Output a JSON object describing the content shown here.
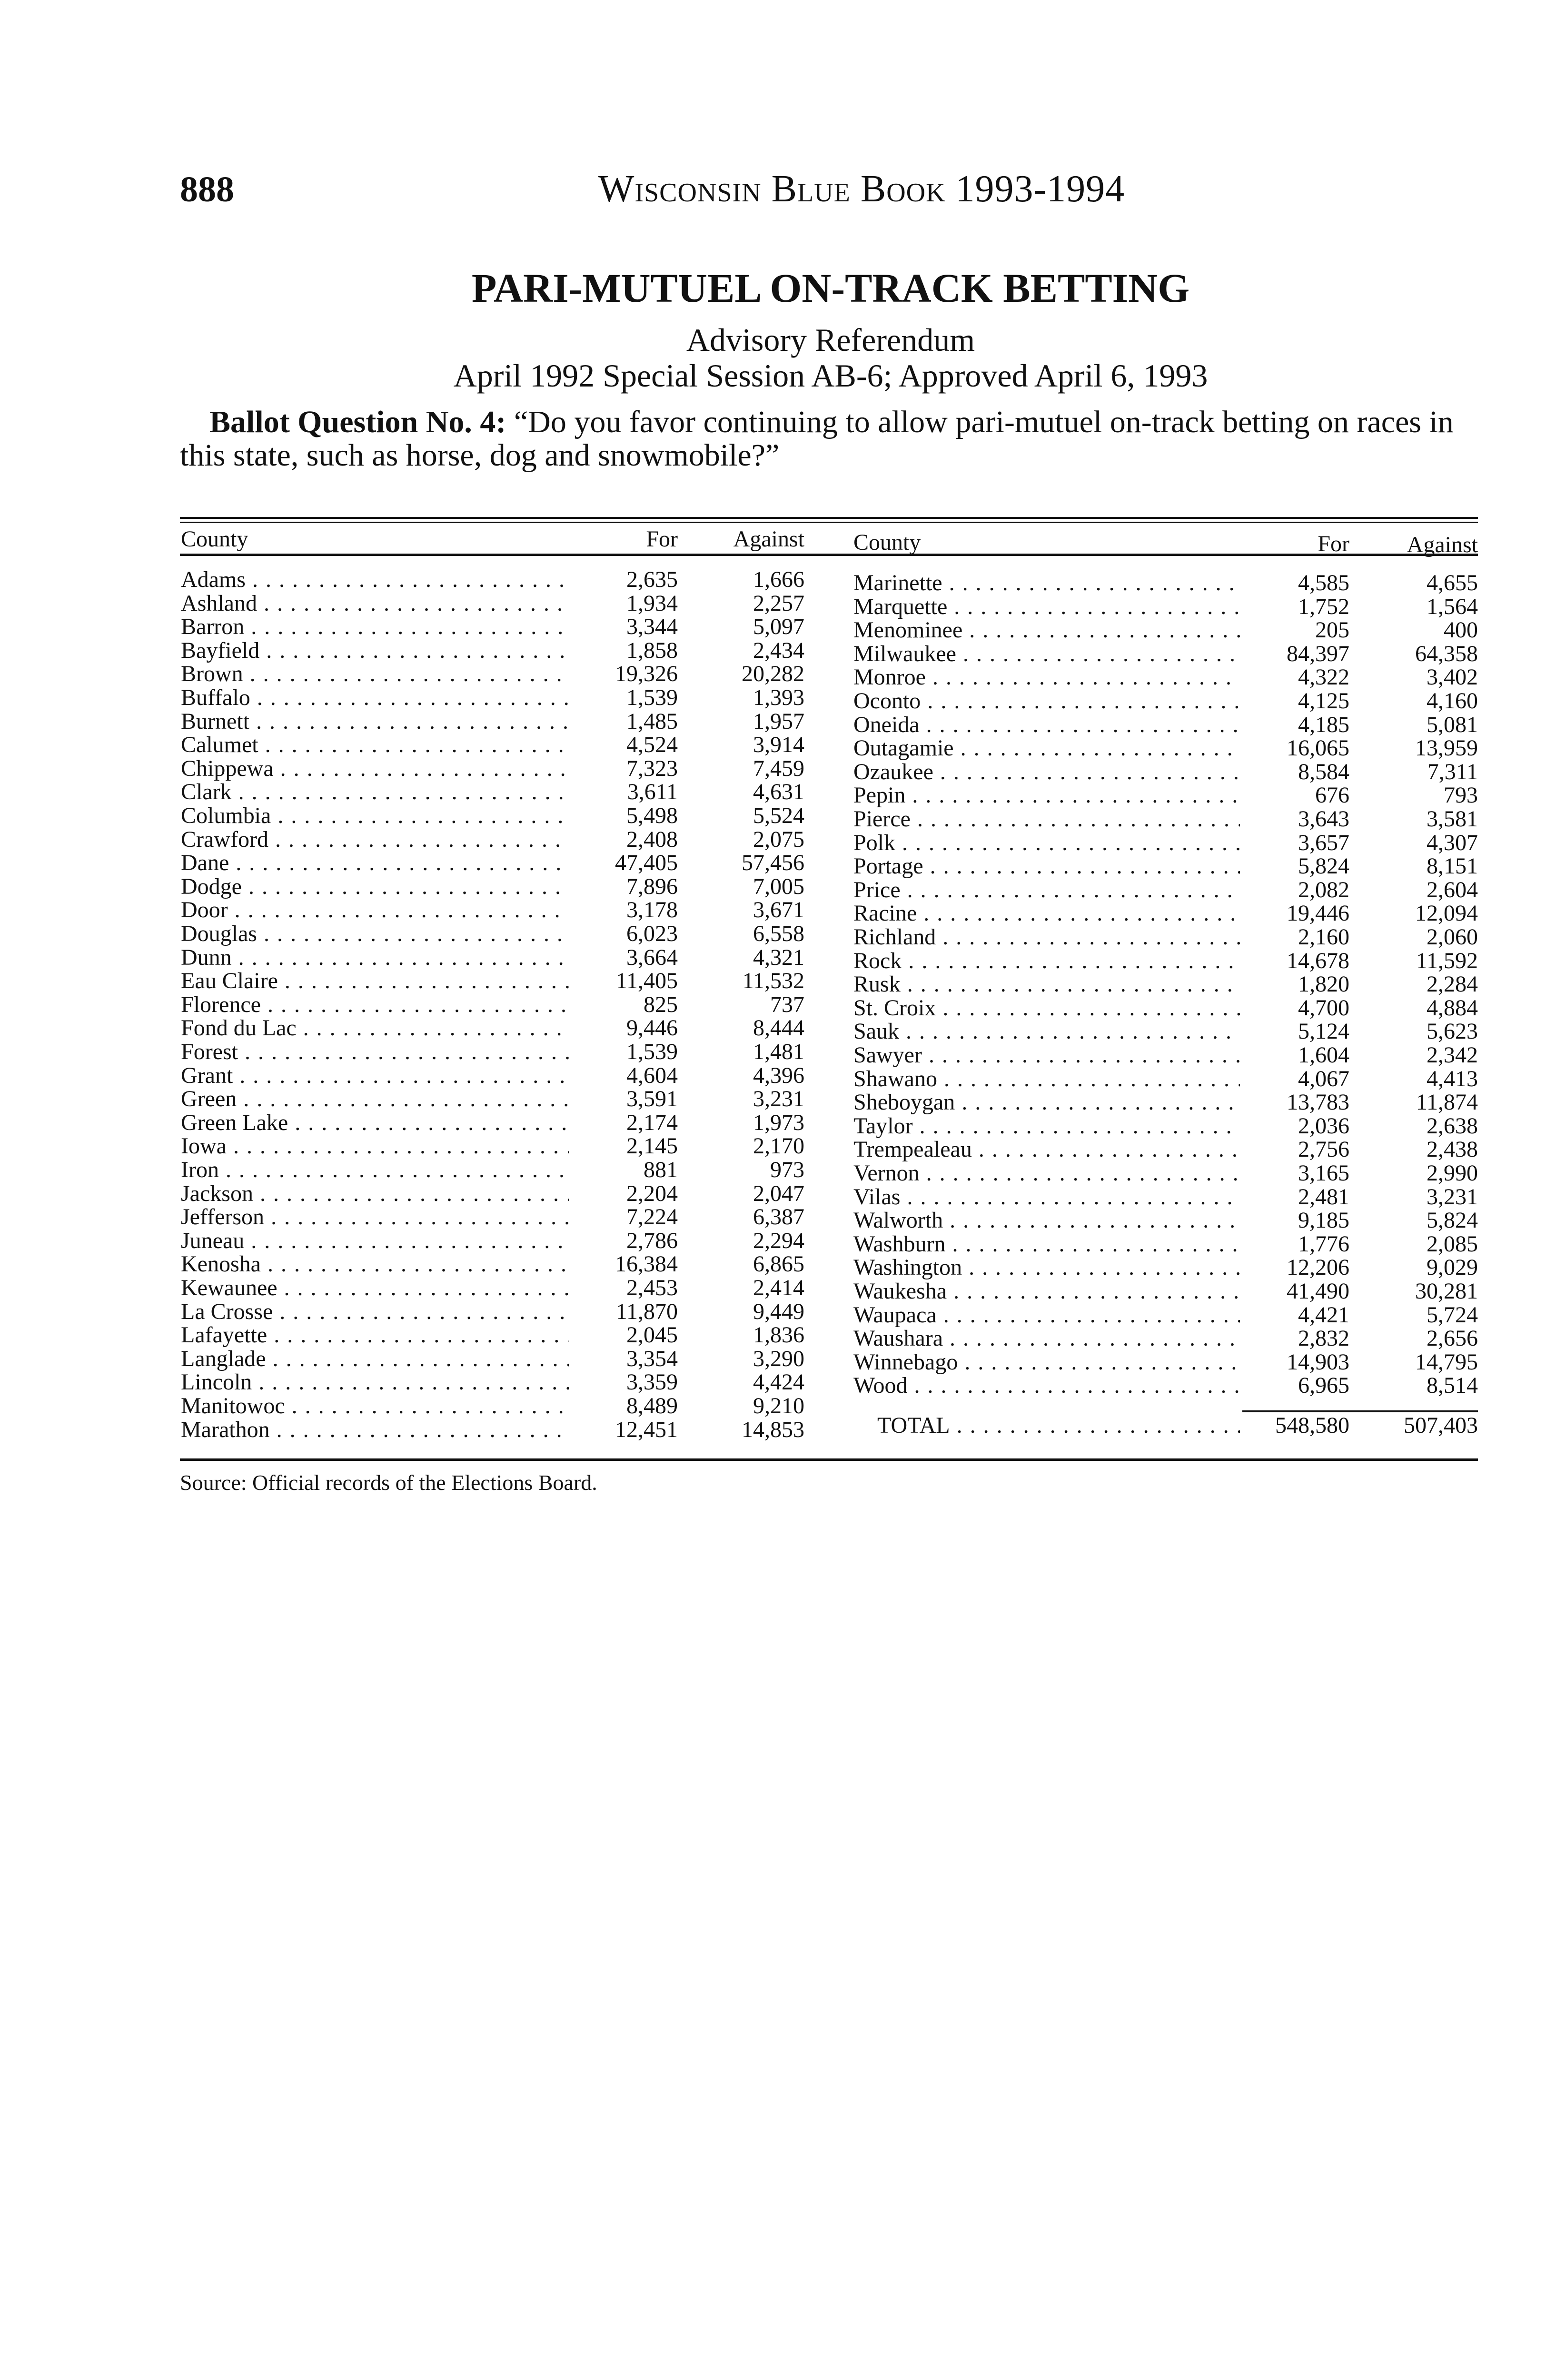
{
  "header": {
    "page_number": "888",
    "running_head": "Wisconsin Blue Book 1993-1994"
  },
  "title": "PARI-MUTUEL ON-TRACK BETTING",
  "subtitle": "Advisory Referendum",
  "dateline": "April 1992 Special Session AB-6; Approved April 6, 1993",
  "question": {
    "label": "Ballot Question No. 4:",
    "text": "“Do you favor continuing to allow pari-mutuel on-track betting on races in this state, such as horse, dog and snowmobile?”"
  },
  "table": {
    "columns": {
      "county": "County",
      "for": "For",
      "against": "Against"
    },
    "left_rows": [
      [
        "Adams",
        "2,635",
        "1,666"
      ],
      [
        "Ashland",
        "1,934",
        "2,257"
      ],
      [
        "Barron",
        "3,344",
        "5,097"
      ],
      [
        "Bayfield",
        "1,858",
        "2,434"
      ],
      [
        "Brown",
        "19,326",
        "20,282"
      ],
      [
        "Buffalo",
        "1,539",
        "1,393"
      ],
      [
        "Burnett",
        "1,485",
        "1,957"
      ],
      [
        "Calumet",
        "4,524",
        "3,914"
      ],
      [
        "Chippewa",
        "7,323",
        "7,459"
      ],
      [
        "Clark",
        "3,611",
        "4,631"
      ],
      [
        "Columbia",
        "5,498",
        "5,524"
      ],
      [
        "Crawford",
        "2,408",
        "2,075"
      ],
      [
        "Dane",
        "47,405",
        "57,456"
      ],
      [
        "Dodge",
        "7,896",
        "7,005"
      ],
      [
        "Door",
        "3,178",
        "3,671"
      ],
      [
        "Douglas",
        "6,023",
        "6,558"
      ],
      [
        "Dunn",
        "3,664",
        "4,321"
      ],
      [
        "Eau Claire",
        "11,405",
        "11,532"
      ],
      [
        "Florence",
        "825",
        "737"
      ],
      [
        "Fond du Lac",
        "9,446",
        "8,444"
      ],
      [
        "Forest",
        "1,539",
        "1,481"
      ],
      [
        "Grant",
        "4,604",
        "4,396"
      ],
      [
        "Green",
        "3,591",
        "3,231"
      ],
      [
        "Green Lake",
        "2,174",
        "1,973"
      ],
      [
        "Iowa",
        "2,145",
        "2,170"
      ],
      [
        "Iron",
        "881",
        "973"
      ],
      [
        "Jackson",
        "2,204",
        "2,047"
      ],
      [
        "Jefferson",
        "7,224",
        "6,387"
      ],
      [
        "Juneau",
        "2,786",
        "2,294"
      ],
      [
        "Kenosha",
        "16,384",
        "6,865"
      ],
      [
        "Kewaunee",
        "2,453",
        "2,414"
      ],
      [
        "La Crosse",
        "11,870",
        "9,449"
      ],
      [
        "Lafayette",
        "2,045",
        "1,836"
      ],
      [
        "Langlade",
        "3,354",
        "3,290"
      ],
      [
        "Lincoln",
        "3,359",
        "4,424"
      ],
      [
        "Manitowoc",
        "8,489",
        "9,210"
      ],
      [
        "Marathon",
        "12,451",
        "14,853"
      ]
    ],
    "right_rows": [
      [
        "Marinette",
        "4,585",
        "4,655"
      ],
      [
        "Marquette",
        "1,752",
        "1,564"
      ],
      [
        "Menominee",
        "205",
        "400"
      ],
      [
        "Milwaukee",
        "84,397",
        "64,358"
      ],
      [
        "Monroe",
        "4,322",
        "3,402"
      ],
      [
        "Oconto",
        "4,125",
        "4,160"
      ],
      [
        "Oneida",
        "4,185",
        "5,081"
      ],
      [
        "Outagamie",
        "16,065",
        "13,959"
      ],
      [
        "Ozaukee",
        "8,584",
        "7,311"
      ],
      [
        "Pepin",
        "676",
        "793"
      ],
      [
        "Pierce",
        "3,643",
        "3,581"
      ],
      [
        "Polk",
        "3,657",
        "4,307"
      ],
      [
        "Portage",
        "5,824",
        "8,151"
      ],
      [
        "Price",
        "2,082",
        "2,604"
      ],
      [
        "Racine",
        "19,446",
        "12,094"
      ],
      [
        "Richland",
        "2,160",
        "2,060"
      ],
      [
        "Rock",
        "14,678",
        "11,592"
      ],
      [
        "Rusk",
        "1,820",
        "2,284"
      ],
      [
        "St. Croix",
        "4,700",
        "4,884"
      ],
      [
        "Sauk",
        "5,124",
        "5,623"
      ],
      [
        "Sawyer",
        "1,604",
        "2,342"
      ],
      [
        "Shawano",
        "4,067",
        "4,413"
      ],
      [
        "Sheboygan",
        "13,783",
        "11,874"
      ],
      [
        "Taylor",
        "2,036",
        "2,638"
      ],
      [
        "Trempealeau",
        "2,756",
        "2,438"
      ],
      [
        "Vernon",
        "3,165",
        "2,990"
      ],
      [
        "Vilas",
        "2,481",
        "3,231"
      ],
      [
        "Walworth",
        "9,185",
        "5,824"
      ],
      [
        "Washburn",
        "1,776",
        "2,085"
      ],
      [
        "Washington",
        "12,206",
        "9,029"
      ],
      [
        "Waukesha",
        "41,490",
        "30,281"
      ],
      [
        "Waupaca",
        "4,421",
        "5,724"
      ],
      [
        "Waushara",
        "2,832",
        "2,656"
      ],
      [
        "Winnebago",
        "14,903",
        "14,795"
      ],
      [
        "Wood",
        "6,965",
        "8,514"
      ]
    ],
    "total": {
      "label": "TOTAL",
      "for": "548,580",
      "against": "507,403"
    }
  },
  "source": "Source: Official records of the Elections Board."
}
